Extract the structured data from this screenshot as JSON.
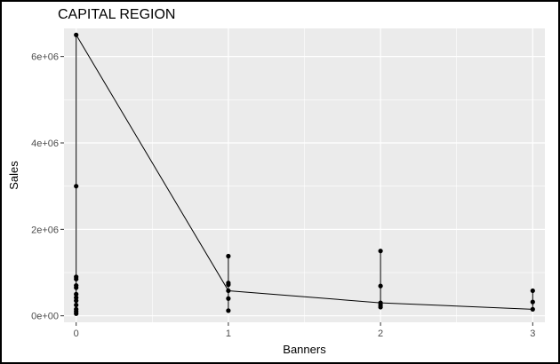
{
  "chart_data": {
    "type": "line",
    "title": "CAPITAL REGION",
    "xlabel": "Banners",
    "ylabel": "Sales",
    "xlim": [
      -0.08,
      3.08
    ],
    "ylim": [
      -150000,
      6650000
    ],
    "x_ticks": [
      0,
      1,
      2,
      3
    ],
    "x_tick_labels": [
      "0",
      "1",
      "2",
      "3"
    ],
    "y_ticks": [
      0,
      2000000,
      4000000,
      6000000
    ],
    "y_tick_labels": [
      "0e+00",
      "2e+06",
      "4e+06",
      "6e+06"
    ],
    "grid": true,
    "legend": "none",
    "colors": {
      "panel": "#ebebeb",
      "grid": "#ffffff",
      "series": "#000000"
    },
    "series": [
      {
        "values": [
          {
            "x": 0,
            "y": 6500000
          },
          {
            "x": 1,
            "y": 580000
          },
          {
            "x": 2,
            "y": 300000
          },
          {
            "x": 3,
            "y": 150000
          }
        ]
      }
    ],
    "segments": [
      {
        "x": 0,
        "y0": 50000,
        "y1": 6500000
      },
      {
        "x": 1,
        "y0": 120000,
        "y1": 1380000
      },
      {
        "x": 2,
        "y0": 200000,
        "y1": 1500000
      },
      {
        "x": 3,
        "y0": 150000,
        "y1": 580000
      }
    ],
    "points": [
      {
        "x": 0,
        "y": 6500000
      },
      {
        "x": 0,
        "y": 3000000
      },
      {
        "x": 0,
        "y": 900000
      },
      {
        "x": 0,
        "y": 850000
      },
      {
        "x": 0,
        "y": 700000
      },
      {
        "x": 0,
        "y": 650000
      },
      {
        "x": 0,
        "y": 500000
      },
      {
        "x": 0,
        "y": 420000
      },
      {
        "x": 0,
        "y": 350000
      },
      {
        "x": 0,
        "y": 250000
      },
      {
        "x": 0,
        "y": 150000
      },
      {
        "x": 0,
        "y": 100000
      },
      {
        "x": 0,
        "y": 50000
      },
      {
        "x": 1,
        "y": 1380000
      },
      {
        "x": 1,
        "y": 760000
      },
      {
        "x": 1,
        "y": 720000
      },
      {
        "x": 1,
        "y": 580000
      },
      {
        "x": 1,
        "y": 400000
      },
      {
        "x": 1,
        "y": 120000
      },
      {
        "x": 2,
        "y": 1500000
      },
      {
        "x": 2,
        "y": 690000
      },
      {
        "x": 2,
        "y": 300000
      },
      {
        "x": 2,
        "y": 250000
      },
      {
        "x": 2,
        "y": 200000
      },
      {
        "x": 3,
        "y": 580000
      },
      {
        "x": 3,
        "y": 320000
      },
      {
        "x": 3,
        "y": 150000
      }
    ]
  }
}
